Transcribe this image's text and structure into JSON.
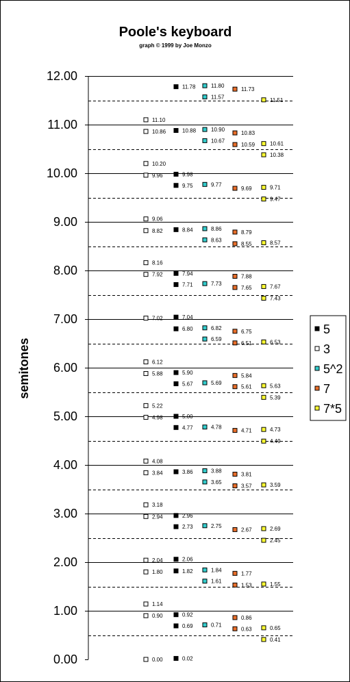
{
  "chart_data": {
    "type": "scatter",
    "title": "Poole's keyboard",
    "subtitle": "graph © 1999 by Joe Monzo",
    "ylabel": "semitones",
    "xlabel": "",
    "ylim": [
      0,
      12
    ],
    "yticks": [
      "0.00",
      "1.00",
      "2.00",
      "3.00",
      "4.00",
      "5.00",
      "6.00",
      "7.00",
      "8.00",
      "9.00",
      "10.00",
      "11.00",
      "12.00"
    ],
    "grid": {
      "solid_lines": [
        1,
        2,
        3,
        4,
        5,
        6,
        7,
        8,
        9,
        10,
        11,
        12
      ],
      "dashed_lines": [
        0.5,
        1.5,
        2.5,
        3.5,
        4.5,
        5.5,
        6.5,
        7.5,
        8.5,
        9.5,
        10.5,
        11.5
      ]
    },
    "legend_position": "right",
    "series": [
      {
        "name": "3",
        "color": "#ffffff",
        "column": 1,
        "values": [
          0.0,
          0.9,
          1.14,
          1.8,
          2.04,
          2.94,
          3.18,
          3.84,
          4.08,
          4.98,
          5.22,
          5.88,
          6.12,
          7.02,
          7.92,
          8.16,
          8.82,
          9.06,
          9.96,
          10.2,
          10.86,
          11.1
        ],
        "labels": [
          "0.00",
          "0.90",
          "1.14",
          "1.80",
          "2.04",
          "2.94",
          "3.18",
          "3.84",
          "4.08",
          "4.98",
          "5.22",
          "5.88",
          "6.12",
          "7.02",
          "7.92",
          "8.16",
          "8.82",
          "9.06",
          "9.96",
          "10.20",
          "10.86",
          "11.10"
        ]
      },
      {
        "name": "5",
        "color": "#000000",
        "column": 2,
        "values": [
          0.02,
          0.69,
          0.92,
          1.82,
          2.06,
          2.73,
          2.96,
          3.86,
          4.77,
          5.0,
          5.67,
          5.9,
          6.8,
          7.04,
          7.71,
          7.94,
          8.84,
          9.75,
          9.98,
          10.88,
          11.78
        ],
        "labels": [
          "0.02",
          "0.69",
          "0.92",
          "1.82",
          "2.06",
          "2.73",
          "2.96",
          "3.86",
          "4.77",
          "5.00",
          "5.67",
          "5.90",
          "6.80",
          "7.04",
          "7.71",
          "7.94",
          "8.84",
          "9.75",
          "9.98",
          "10.88",
          "11.78"
        ]
      },
      {
        "name": "5^2",
        "color": "#33cccc",
        "column": 3,
        "values": [
          0.71,
          1.61,
          1.84,
          2.75,
          3.65,
          3.88,
          4.78,
          5.69,
          6.59,
          6.82,
          7.73,
          8.63,
          8.86,
          9.77,
          10.67,
          10.9,
          11.57,
          11.8
        ],
        "labels": [
          "0.71",
          "1.61",
          "1.84",
          "2.75",
          "3.65",
          "3.88",
          "4.78",
          "5.69",
          "6.59",
          "6.82",
          "7.73",
          "8.63",
          "8.86",
          "9.77",
          "10.67",
          "10.90",
          "11.57",
          "11.80"
        ]
      },
      {
        "name": "7",
        "color": "#e86e2a",
        "column": 4,
        "values": [
          0.63,
          0.86,
          1.53,
          1.77,
          2.67,
          3.57,
          3.81,
          4.71,
          5.61,
          5.84,
          6.51,
          6.75,
          7.65,
          7.88,
          8.55,
          8.79,
          9.69,
          10.59,
          10.83,
          11.73
        ],
        "labels": [
          "0.63",
          "0.86",
          "1.53",
          "1.77",
          "2.67",
          "3.57",
          "3.81",
          "4.71",
          "5.61",
          "5.84",
          "6.51",
          "6.75",
          "7.65",
          "7.88",
          "8.55",
          "8.79",
          "9.69",
          "10.59",
          "10.83",
          "11.73"
        ]
      },
      {
        "name": "7*5",
        "color": "#ffff33",
        "column": 5,
        "values": [
          0.41,
          0.65,
          1.55,
          2.45,
          2.69,
          3.59,
          4.49,
          4.73,
          5.39,
          5.63,
          6.53,
          7.43,
          7.67,
          8.57,
          9.47,
          9.71,
          10.38,
          10.61,
          11.51
        ],
        "labels": [
          "0.41",
          "0.65",
          "1.55",
          "2.45",
          "2.69",
          "3.59",
          "4.49",
          "4.73",
          "5.39",
          "5.63",
          "6.53",
          "7.43",
          "7.67",
          "8.57",
          "9.47",
          "9.71",
          "10.38",
          "10.61",
          "11.51"
        ]
      }
    ],
    "legend_order": [
      "5",
      "3",
      "5^2",
      "7",
      "7*5"
    ]
  }
}
